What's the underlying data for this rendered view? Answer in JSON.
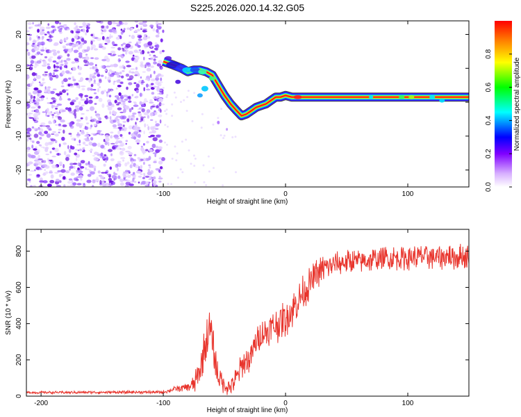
{
  "title": "S225.2026.020.14.32.G05",
  "chart_data": [
    {
      "type": "heatmap",
      "xlabel": "Height of straight line (km)",
      "ylabel": "Frequency (Hz)",
      "xlim": [
        -212,
        150
      ],
      "ylim": [
        -25,
        24
      ],
      "xticks": [
        -200,
        -100,
        0,
        100
      ],
      "yticks": [
        -20,
        -10,
        0,
        10,
        20
      ],
      "noise_region_x": [
        -212,
        -100
      ],
      "ridge": {
        "x": [
          -100,
          -92,
          -85,
          -80,
          -75,
          -70,
          -65,
          -60,
          -55,
          -50,
          -45,
          -40,
          -36,
          -32,
          -28,
          -24,
          -20,
          -16,
          -12,
          -8,
          -4,
          0,
          5,
          10,
          20,
          40,
          60,
          80,
          100,
          120,
          150
        ],
        "y": [
          12,
          11,
          10,
          9,
          9.5,
          9.5,
          9,
          8,
          5,
          2,
          -0.5,
          -2.5,
          -4,
          -3.5,
          -2.5,
          -1.5,
          -1,
          -0.5,
          0.5,
          1.5,
          1.5,
          2,
          1.5,
          1.5,
          1.5,
          1.5,
          1.5,
          1.5,
          1.5,
          1.5,
          1.5
        ]
      },
      "colorbar": {
        "label": "Normalized spectral amplitude",
        "min": 0,
        "max": 1,
        "ticks": [
          "0.0",
          "0.2",
          "0.4",
          "0.6",
          "0.8"
        ],
        "colors": [
          "#ffffff",
          "#8000ff",
          "#0000ff",
          "#00ffff",
          "#00ff00",
          "#ffff00",
          "#ff8000",
          "#ff0000"
        ]
      }
    },
    {
      "type": "line",
      "xlabel": "Height of straight line (km)",
      "ylabel": "SNR (10 * v/v)",
      "xlim": [
        -212,
        150
      ],
      "ylim": [
        0,
        920
      ],
      "xticks": [
        -200,
        -100,
        0,
        100
      ],
      "yticks": [
        0,
        200,
        400,
        600,
        800
      ],
      "color": "#e8342c",
      "envelope": {
        "x": [
          -212,
          -100,
          -90,
          -80,
          -75,
          -70,
          -66,
          -62,
          -60,
          -58,
          -55,
          -50,
          -45,
          -40,
          -35,
          -30,
          -25,
          -20,
          -15,
          -10,
          -5,
          0,
          5,
          10,
          15,
          20,
          25,
          30,
          40,
          50,
          60,
          80,
          100,
          120,
          150
        ],
        "y": [
          20,
          22,
          40,
          50,
          60,
          140,
          280,
          360,
          330,
          200,
          110,
          60,
          50,
          100,
          180,
          200,
          280,
          340,
          360,
          380,
          400,
          430,
          470,
          520,
          580,
          620,
          670,
          700,
          730,
          740,
          745,
          760,
          765,
          770,
          770
        ]
      },
      "noise_amplitude": {
        "x": [
          -212,
          -100,
          -80,
          -62,
          -50,
          -35,
          -20,
          0,
          20,
          40,
          150
        ],
        "y": [
          8,
          10,
          30,
          160,
          60,
          90,
          100,
          130,
          110,
          80,
          90
        ]
      }
    }
  ]
}
